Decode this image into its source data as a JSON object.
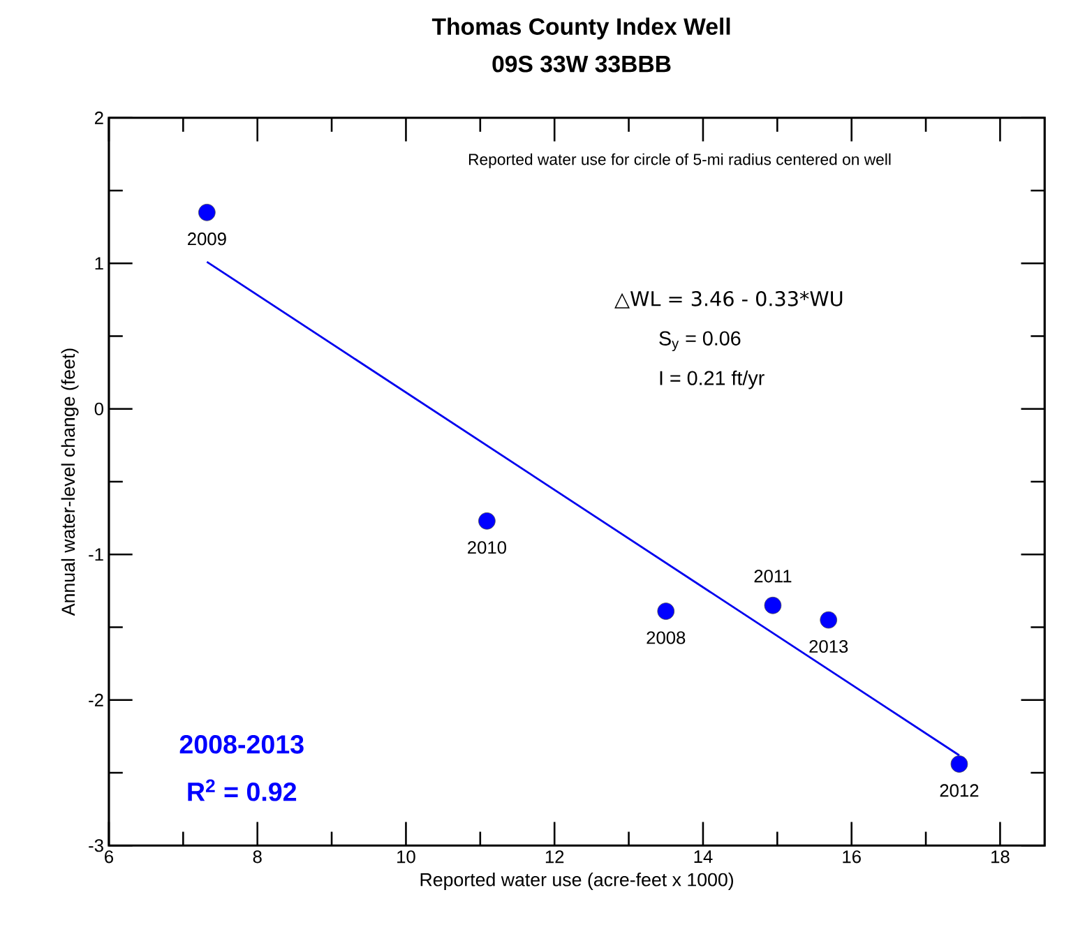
{
  "chart_data": {
    "type": "scatter",
    "title": "Thomas County Index Well",
    "subtitle": "09S 33W 33BBB",
    "xlabel": "Reported water use (acre-feet x 1000)",
    "ylabel": "Annual water-level change (feet)",
    "xlim": [
      6,
      18.6
    ],
    "ylim": [
      -3,
      2
    ],
    "xticks": [
      6,
      {
        "value": 7,
        "label": null
      },
      8,
      {
        "value": 9,
        "label": null
      },
      10,
      {
        "value": 11,
        "label": null
      },
      12,
      {
        "value": 13,
        "label": null
      },
      14,
      {
        "value": 15,
        "label": null
      },
      16,
      {
        "value": 17,
        "label": null
      },
      18
    ],
    "yticks": [
      -3,
      {
        "value": -2.5,
        "label": null
      },
      -2,
      {
        "value": -1.5,
        "label": null
      },
      -1,
      {
        "value": -0.5,
        "label": null
      },
      0,
      {
        "value": 0.5,
        "label": null
      },
      1,
      {
        "value": 1.5,
        "label": null
      },
      2
    ],
    "series": [
      {
        "type": "scatter",
        "color": "#0000ff",
        "marker": "circle",
        "x": [
          13.5,
          7.32,
          11.09,
          14.94,
          17.45,
          15.69
        ],
        "values": [
          -1.39,
          1.35,
          -0.77,
          -1.35,
          -2.44,
          -1.45
        ]
      },
      {
        "type": "line",
        "color": "#0000ee",
        "marker": "none",
        "line_style": "solid",
        "x": [
          7.32,
          17.45
        ],
        "values": [
          1.01,
          -2.38
        ]
      }
    ],
    "annotations": [
      "Reported water use for circle of 5-mi radius centered on well",
      "△WL = 3.46 - 0.33*WU",
      "S$_{y}$ = 0.06",
      "I = 0.21 ft/yr",
      "2008-2013",
      "R$^{2}$ = 0.92",
      {
        "text": "2008",
        "x": 13.5,
        "y": -1.39
      },
      {
        "text": "2009",
        "x": 7.32,
        "y": 1.35
      },
      {
        "text": "2010",
        "x": 11.09,
        "y": -0.77
      },
      {
        "text": "2011",
        "x": 14.94,
        "y": -1.35
      },
      {
        "text": "2012",
        "x": 17.45,
        "y": -2.44
      },
      {
        "text": "2013",
        "x": 15.69,
        "y": -1.45
      }
    ]
  }
}
